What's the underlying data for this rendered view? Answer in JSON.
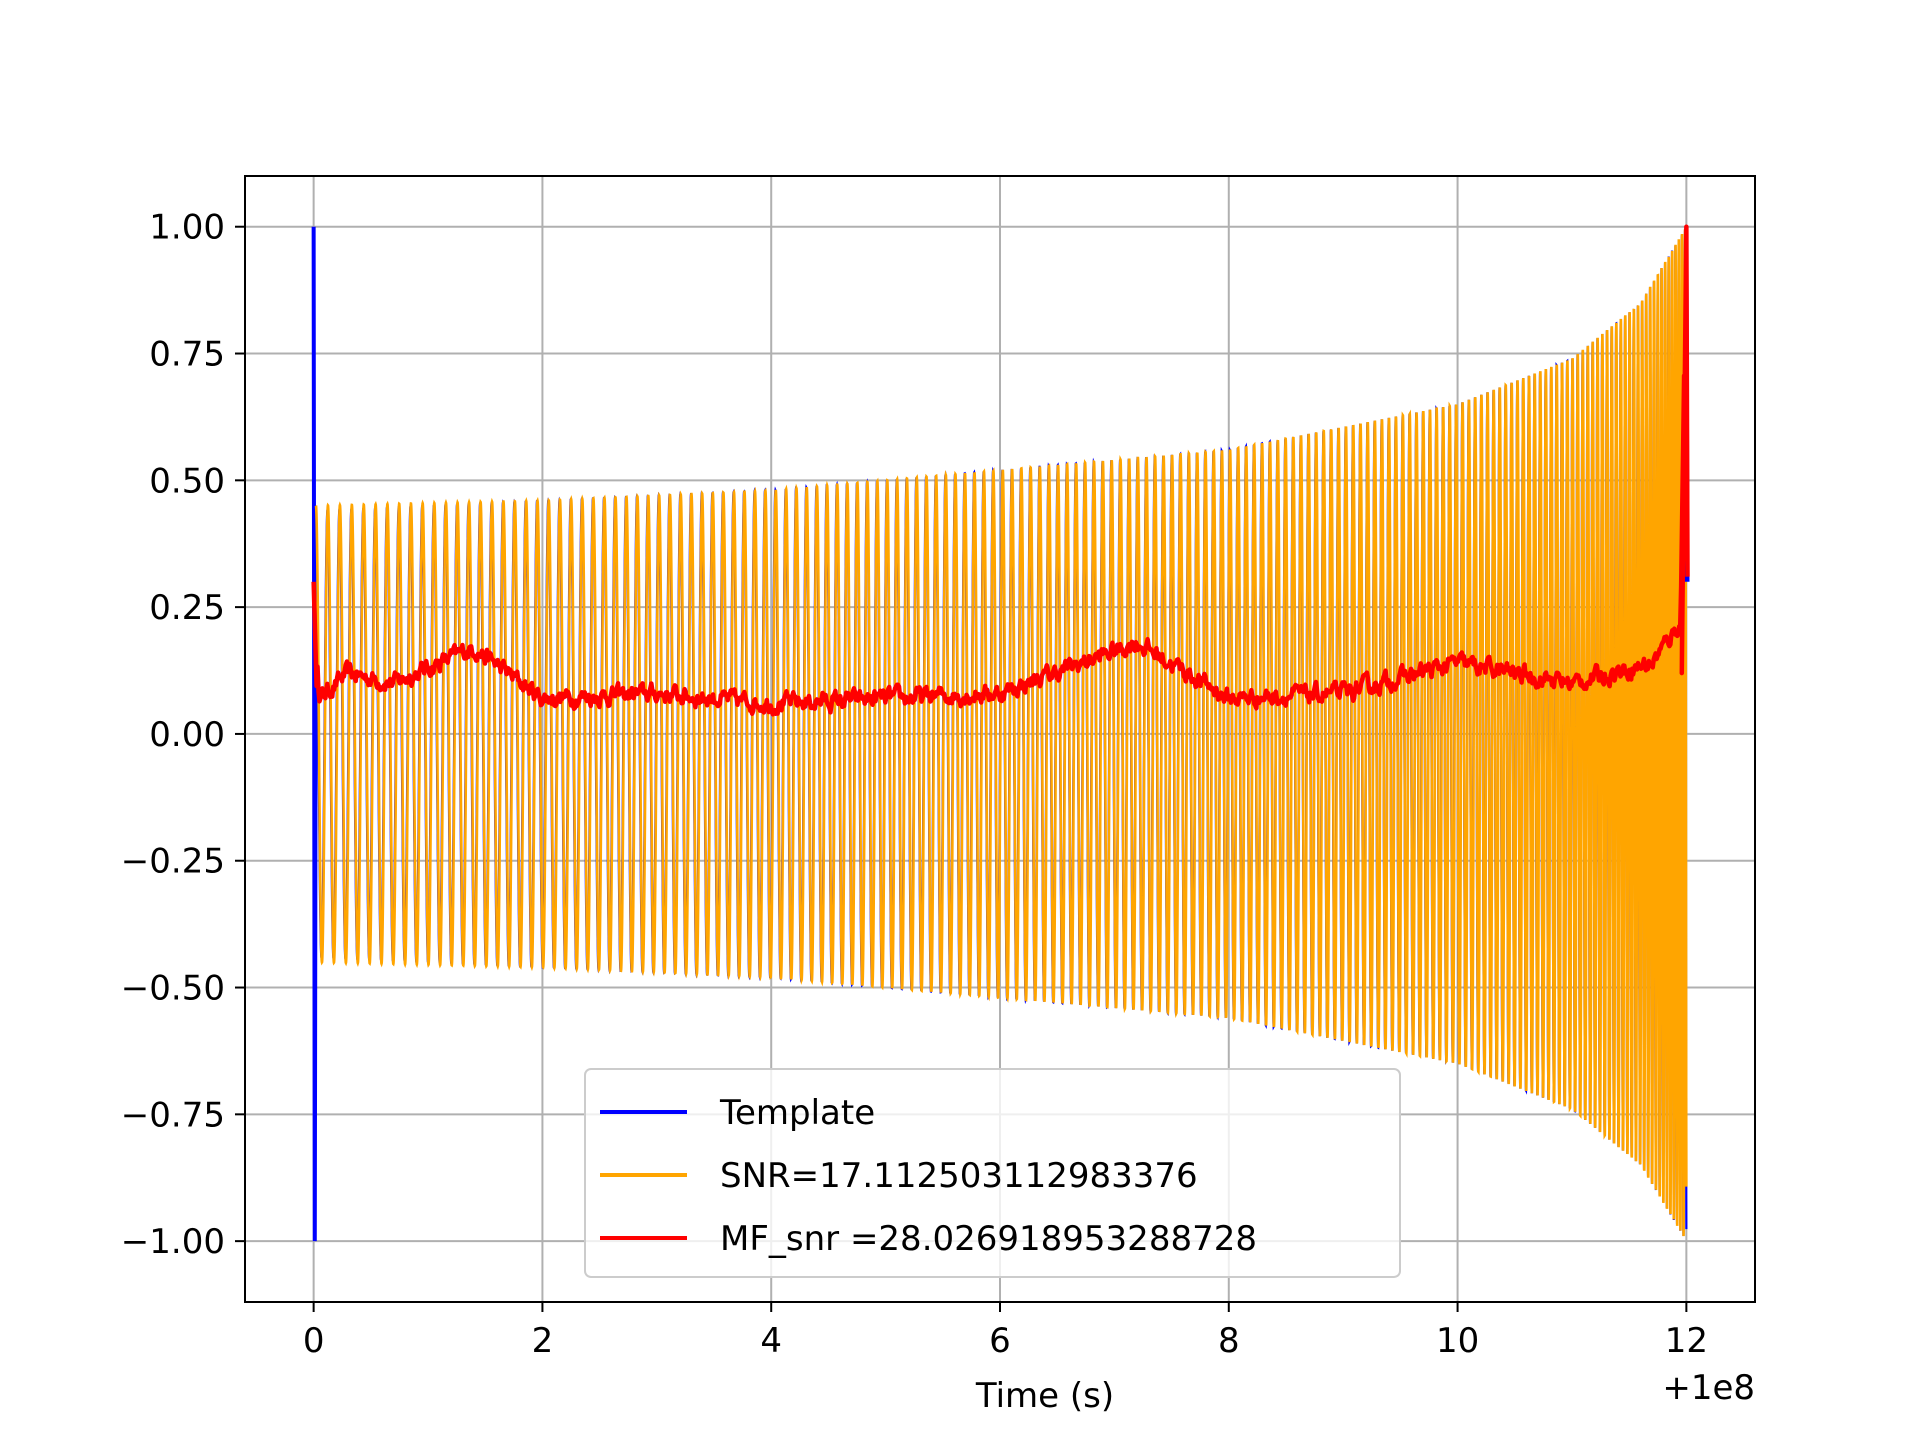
{
  "chart_data": {
    "type": "line",
    "title": "",
    "xlabel": "Time (s)",
    "ylabel": "",
    "x_offset_label": "+1e8",
    "xlim": [
      -0.6,
      12.6
    ],
    "ylim": [
      -1.12,
      1.1
    ],
    "grid": true,
    "legend_position": "lower center",
    "x_ticks": [
      0,
      2,
      4,
      6,
      8,
      10,
      12
    ],
    "x_tick_labels": [
      "0",
      "2",
      "4",
      "6",
      "8",
      "10",
      "12"
    ],
    "y_ticks": [
      1.0,
      0.75,
      0.5,
      0.25,
      0.0,
      -0.25,
      -0.5,
      -0.75,
      -1.0
    ],
    "y_tick_labels": [
      "1.00",
      "0.75",
      "0.50",
      "0.25",
      "0.00",
      "−0.25",
      "−0.50",
      "−0.75",
      "−1.00"
    ],
    "series": [
      {
        "name": "Template",
        "color": "#0000ff",
        "description": "chirp oscillation; envelope approx 0.44 at start rising to 1.0 at t=12, spike from 1.0 to -1.0 at t=0",
        "envelope_points": [
          [
            0.0,
            0.44
          ],
          [
            2.0,
            0.46
          ],
          [
            4.0,
            0.48
          ],
          [
            6.0,
            0.52
          ],
          [
            8.0,
            0.56
          ],
          [
            10.0,
            0.65
          ],
          [
            11.0,
            0.74
          ],
          [
            11.6,
            0.85
          ],
          [
            12.0,
            1.0
          ]
        ]
      },
      {
        "name": "SNR=17.112503112983376",
        "color": "#ffa500",
        "description": "chirp signal following same envelope as template",
        "envelope_points": [
          [
            0.0,
            0.45
          ],
          [
            2.0,
            0.46
          ],
          [
            4.0,
            0.48
          ],
          [
            6.0,
            0.52
          ],
          [
            8.0,
            0.56
          ],
          [
            10.0,
            0.65
          ],
          [
            11.0,
            0.74
          ],
          [
            11.6,
            0.85
          ],
          [
            12.0,
            1.0
          ]
        ]
      },
      {
        "name": "MF_snr =28.026918953288728",
        "color": "#ff0000",
        "description": "noisy matched-filter output near 0.05, peak to 1.0 at t=12",
        "points": [
          [
            0.0,
            0.3
          ],
          [
            0.05,
            0.05
          ],
          [
            0.3,
            0.1
          ],
          [
            0.7,
            0.08
          ],
          [
            1.4,
            0.15
          ],
          [
            2.0,
            0.05
          ],
          [
            3.0,
            0.06
          ],
          [
            4.0,
            0.04
          ],
          [
            5.0,
            0.05
          ],
          [
            6.0,
            0.06
          ],
          [
            7.2,
            0.16
          ],
          [
            8.0,
            0.05
          ],
          [
            9.0,
            0.06
          ],
          [
            10.0,
            0.12
          ],
          [
            11.0,
            0.08
          ],
          [
            11.7,
            0.12
          ],
          [
            11.95,
            0.2
          ],
          [
            12.0,
            1.0
          ],
          [
            12.01,
            0.3
          ]
        ]
      }
    ]
  }
}
